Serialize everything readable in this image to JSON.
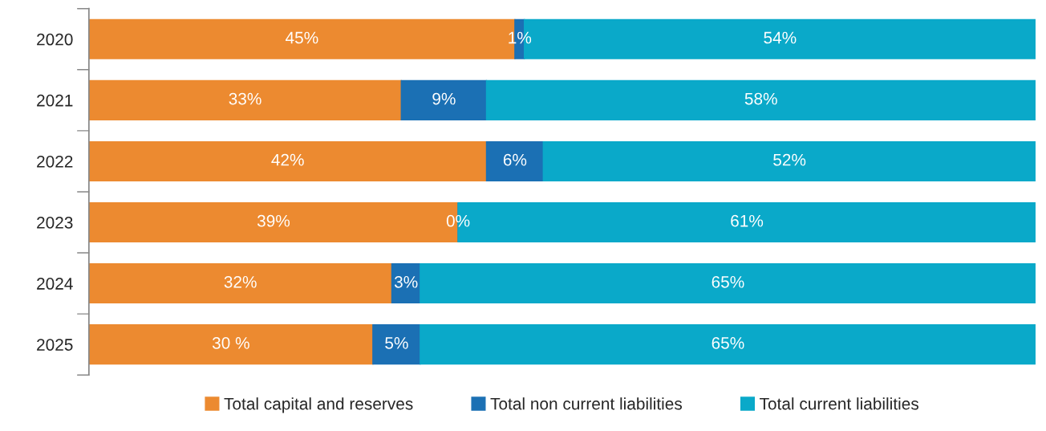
{
  "chart_data": {
    "type": "bar",
    "orientation": "horizontal",
    "stacked": true,
    "categories": [
      "2020",
      "2021",
      "2022",
      "2023",
      "2024",
      "2025"
    ],
    "xlim": [
      0,
      100
    ],
    "tick_labels": "y",
    "legend": "bottom",
    "series": [
      {
        "name": "Total capital and reserves",
        "color": "#ec8a30",
        "values": [
          45,
          33,
          42,
          39,
          32,
          30
        ],
        "value_labels": [
          "45%",
          "33%",
          "42%",
          "39%",
          "32%",
          "30 %"
        ]
      },
      {
        "name": "Total non current liabilities",
        "color": "#1b70b4",
        "values": [
          1,
          9,
          6,
          0,
          3,
          5
        ],
        "value_labels": [
          "1%",
          "9%",
          "6%",
          "0%",
          "3%",
          "5%"
        ]
      },
      {
        "name": "Total current liabilities",
        "color": "#0aa9c9",
        "values": [
          54,
          58,
          52,
          61,
          65,
          65
        ],
        "value_labels": [
          "54%",
          "58%",
          "52%",
          "61%",
          "65%",
          "65%"
        ]
      }
    ]
  }
}
